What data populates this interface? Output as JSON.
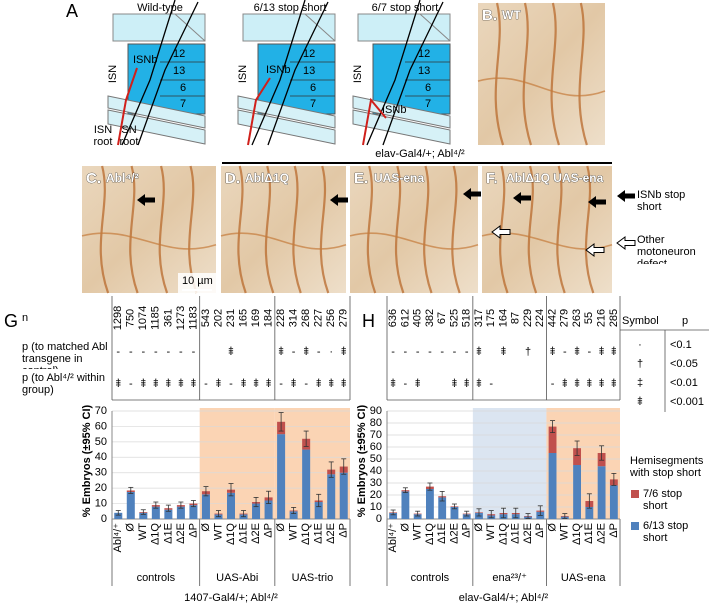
{
  "panel_a": {
    "label": "A",
    "diagrams": [
      {
        "title": "Wild-type"
      },
      {
        "title": "6/13 stop short"
      },
      {
        "title": "6/7 stop short"
      }
    ],
    "nerve": "ISN",
    "branch": "ISNb",
    "muscles": [
      "12",
      "13",
      "6",
      "7"
    ],
    "roots": [
      "ISN root",
      "SN root"
    ]
  },
  "photos": [
    {
      "label": "B.",
      "name": "WT"
    },
    {
      "label": "C.",
      "name": "Abl⁴/²"
    },
    {
      "label": "D.",
      "name": "AblΔ1Q"
    },
    {
      "label": "E.",
      "name": "UAS-ena"
    },
    {
      "label": "F.",
      "name": "AblΔ1Q UAS-ena"
    }
  ],
  "photo_header": "elav-Gal4/+; Abl⁴/²",
  "scale_bar": "10 µm",
  "annotations": [
    "ISNb stop short",
    "Other motoneuron defect"
  ],
  "chart_data": [
    {
      "type": "bar",
      "stacked": true,
      "panel": "G",
      "ylabel": "% Embryos (±95% CI)",
      "xlabel": "1407-Gal4/+; Abl⁴/²",
      "ylim": [
        0,
        70
      ],
      "yticks": [
        0,
        10,
        20,
        30,
        40,
        50,
        60,
        70
      ],
      "grid": true,
      "groups": [
        {
          "label": "controls",
          "categories": [
            "Abl⁴/⁺",
            "Ø",
            "WT",
            "Δ1Q",
            "Δ1E",
            "Δ2E",
            "ΔP"
          ],
          "shade": null
        },
        {
          "label": "UAS-Abi",
          "categories": [
            "Ø",
            "WT",
            "Δ1Q",
            "Δ1E",
            "Δ2E",
            "ΔP"
          ],
          "shade": "#fbd4b4"
        },
        {
          "label": "UAS-trio",
          "categories": [
            "Ø",
            "WT",
            "Δ1Q",
            "Δ1E",
            "Δ2E",
            "ΔP"
          ],
          "shade": "#fbd4b4"
        }
      ],
      "series": [
        {
          "color": "#4f81bd",
          "values": [
            4,
            17.5,
            4,
            8,
            6,
            8,
            9,
            16,
            3,
            17,
            3,
            10,
            12,
            55,
            5,
            45,
            11,
            29,
            30
          ]
        },
        {
          "color": "#c0504d",
          "values": [
            0,
            1,
            0.5,
            1,
            1,
            1,
            1,
            2,
            0.5,
            2,
            0.5,
            1,
            2,
            8,
            0.5,
            7,
            1,
            3,
            4
          ]
        }
      ],
      "errors": [
        1.5,
        2,
        1.5,
        2,
        2,
        2,
        2,
        3,
        2,
        4,
        2,
        3,
        4,
        6,
        2,
        5,
        4,
        5,
        5
      ],
      "table": {
        "row_labels": [
          "n",
          "p (to matched Abl transgene in control)",
          "p (to Abl⁴/² within group)"
        ],
        "n": [
          1298,
          750,
          1074,
          1185,
          361,
          1273,
          1183,
          543,
          202,
          231,
          165,
          169,
          184,
          228,
          314,
          268,
          227,
          256,
          279
        ],
        "p_matched": [
          "-",
          "-",
          "-",
          "-",
          "-",
          "-",
          "-",
          null,
          null,
          "⹋",
          null,
          null,
          null,
          "⹋",
          "-",
          "⹋",
          "-",
          "·",
          "⹋"
        ],
        "p_within": [
          "⹋",
          "-",
          "⹋",
          "⹋",
          "⹋",
          "⹋",
          "⹋",
          "-",
          "⹋",
          "-",
          "⹋",
          "⹋",
          "⹋",
          "-",
          "⹋",
          "-",
          "⹋",
          "⹋",
          "⹋"
        ]
      }
    },
    {
      "type": "bar",
      "stacked": true,
      "panel": "H",
      "ylabel": "% Embryos (±95% CI)",
      "xlabel": "elav-Gal4/+; Abl⁴/²",
      "ylim": [
        0,
        90
      ],
      "yticks": [
        0,
        10,
        20,
        30,
        40,
        50,
        60,
        70,
        80,
        90
      ],
      "grid": true,
      "groups": [
        {
          "label": "controls",
          "categories": [
            "Abl⁴/⁺",
            "Ø",
            "WT",
            "Δ1Q",
            "Δ1E",
            "Δ2E",
            "ΔP"
          ],
          "shade": null
        },
        {
          "label": "ena²³/⁺",
          "categories": [
            "Ø",
            "WT",
            "Δ1Q",
            "Δ1E",
            "Δ2E",
            "ΔP"
          ],
          "shade": "#dbe5f1"
        },
        {
          "label": "UAS-ena",
          "categories": [
            "Ø",
            "WT",
            "Δ1Q",
            "Δ1E",
            "Δ2E",
            "ΔP"
          ],
          "shade": "#fbd4b4"
        }
      ],
      "legend_title": "Hemisegments with stop short",
      "series": [
        {
          "name": "6/13 stop short",
          "color": "#4f81bd",
          "values": [
            5,
            23,
            4,
            25,
            18,
            10,
            4,
            5,
            3,
            4,
            4,
            2,
            6,
            55,
            2,
            45,
            10,
            44,
            28
          ]
        },
        {
          "name": "7/6 stop short",
          "color": "#c0504d",
          "values": [
            0.5,
            1,
            0.5,
            2,
            1,
            0.5,
            0.5,
            0.5,
            1,
            1,
            1,
            0.5,
            1,
            22,
            0.5,
            14,
            5,
            11,
            5
          ]
        }
      ],
      "errors": [
        2,
        2,
        2,
        3,
        4,
        2,
        2,
        3,
        3,
        4,
        4,
        2,
        4,
        5,
        2,
        6,
        6,
        6,
        5
      ],
      "table": {
        "n": [
          636,
          612,
          405,
          382,
          67,
          525,
          518,
          317,
          175,
          164,
          87,
          229,
          224,
          442,
          279,
          263,
          55,
          216,
          285
        ],
        "p_matched": [
          "-",
          "-",
          "-",
          "-",
          "-",
          "-",
          "-",
          "⹋",
          null,
          "⹋",
          null,
          "†",
          null,
          "⹋",
          "-",
          "⹋",
          "-",
          "⹋",
          "⹋"
        ],
        "p_within": [
          "⹋",
          "-",
          "⹋",
          null,
          null,
          "⹋",
          "⹋",
          "⹋",
          "-",
          null,
          null,
          null,
          null,
          "-",
          "⹋",
          "⹋",
          "⹋",
          "⹋",
          "⹋"
        ]
      }
    }
  ],
  "p_key": {
    "headers": [
      "Symbol",
      "p"
    ],
    "rows": [
      [
        "·",
        "<0.1"
      ],
      [
        "†",
        "<0.05"
      ],
      [
        "‡",
        "<0.01"
      ],
      [
        "⹋",
        "<0.001"
      ]
    ]
  }
}
